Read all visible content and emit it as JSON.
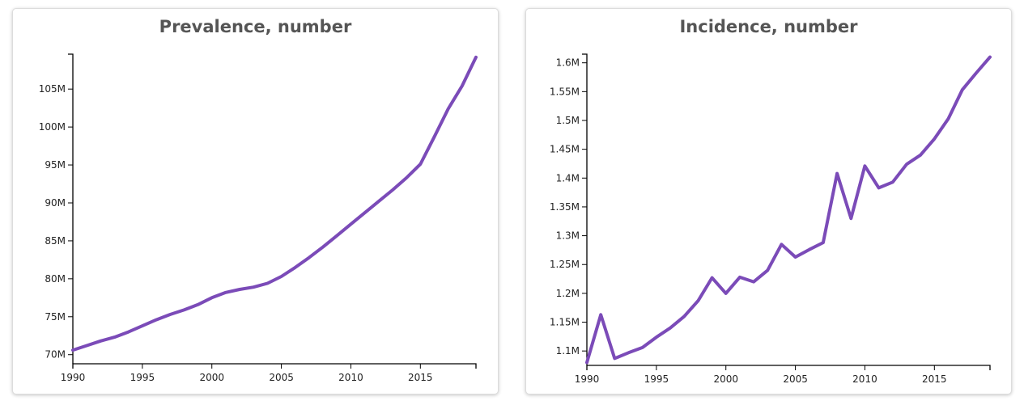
{
  "accent_color": "#7b4bb8",
  "chart_data": [
    {
      "type": "line",
      "title": "Prevalence, number",
      "xlim": [
        1990,
        2019
      ],
      "ylim": [
        68800000,
        109600000
      ],
      "x_ticks": [
        1990,
        1995,
        2000,
        2005,
        2010,
        2015
      ],
      "x_tick_labels": [
        "1990",
        "1995",
        "2000",
        "2005",
        "2010",
        "2015"
      ],
      "y_ticks": [
        70000000,
        75000000,
        80000000,
        85000000,
        90000000,
        95000000,
        100000000,
        105000000
      ],
      "y_tick_labels": [
        "70M",
        "75M",
        "80M",
        "85M",
        "90M",
        "95M",
        "100M",
        "105M"
      ],
      "grid": false,
      "series": [
        {
          "color": "#7b4bb8",
          "x": [
            1990,
            1991,
            1992,
            1993,
            1994,
            1995,
            1996,
            1997,
            1998,
            1999,
            2000,
            2001,
            2002,
            2003,
            2004,
            2005,
            2006,
            2007,
            2008,
            2009,
            2010,
            2011,
            2012,
            2013,
            2014,
            2015,
            2016,
            2017,
            2018,
            2019
          ],
          "values": [
            70600000,
            71200000,
            71800000,
            72300000,
            73000000,
            73800000,
            74600000,
            75300000,
            75900000,
            76600000,
            77500000,
            78200000,
            78600000,
            78900000,
            79400000,
            80300000,
            81500000,
            82800000,
            84200000,
            85700000,
            87200000,
            88700000,
            90200000,
            91700000,
            93300000,
            95100000,
            98700000,
            102400000,
            105400000,
            109200000
          ]
        }
      ]
    },
    {
      "type": "line",
      "title": "Incidence, number",
      "xlim": [
        1990,
        2019
      ],
      "ylim": [
        1075000,
        1615000
      ],
      "x_ticks": [
        1990,
        1995,
        2000,
        2005,
        2010,
        2015
      ],
      "x_tick_labels": [
        "1990",
        "1995",
        "2000",
        "2005",
        "2010",
        "2015"
      ],
      "y_ticks": [
        1100000,
        1150000,
        1200000,
        1250000,
        1300000,
        1350000,
        1400000,
        1450000,
        1500000,
        1550000,
        1600000
      ],
      "y_tick_labels": [
        "1.1M",
        "1.15M",
        "1.2M",
        "1.25M",
        "1.3M",
        "1.35M",
        "1.4M",
        "1.45M",
        "1.5M",
        "1.55M",
        "1.6M"
      ],
      "grid": false,
      "series": [
        {
          "color": "#7b4bb8",
          "x": [
            1990,
            1991,
            1992,
            1993,
            1994,
            1995,
            1996,
            1997,
            1998,
            1999,
            2000,
            2001,
            2002,
            2003,
            2004,
            2005,
            2006,
            2007,
            2008,
            2009,
            2010,
            2011,
            2012,
            2013,
            2014,
            2015,
            2016,
            2017,
            2018,
            2019
          ],
          "values": [
            1080000,
            1163000,
            1087000,
            1097000,
            1106000,
            1124000,
            1140000,
            1160000,
            1187000,
            1227000,
            1200000,
            1228000,
            1220000,
            1240000,
            1285000,
            1263000,
            1276000,
            1288000,
            1408000,
            1330000,
            1421000,
            1383000,
            1393000,
            1424000,
            1440000,
            1468000,
            1503000,
            1553000,
            1582000,
            1610000
          ]
        }
      ]
    }
  ]
}
